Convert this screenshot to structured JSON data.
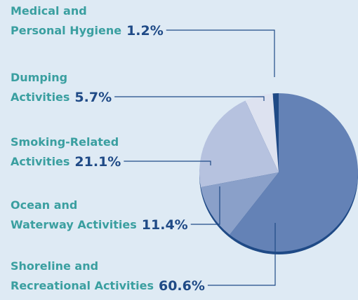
{
  "chart_data": {
    "type": "pie",
    "categories": [
      [
        "Medical and",
        "Personal Hygiene"
      ],
      [
        "Dumping",
        "Activities"
      ],
      [
        "Smoking-Related",
        "Activities"
      ],
      [
        "Ocean and",
        "Waterway Activities"
      ],
      [
        "Shoreline and",
        "Recreational Activities"
      ]
    ],
    "values": [
      1.2,
      5.7,
      21.1,
      11.4,
      60.6
    ],
    "value_labels": [
      "1.2%",
      "5.7%",
      "21.1%",
      "11.4%",
      "60.6%"
    ],
    "colors": [
      "#1f4a86",
      "#dde2f0",
      "#b6c2df",
      "#8aa0c9",
      "#6482b6"
    ]
  }
}
